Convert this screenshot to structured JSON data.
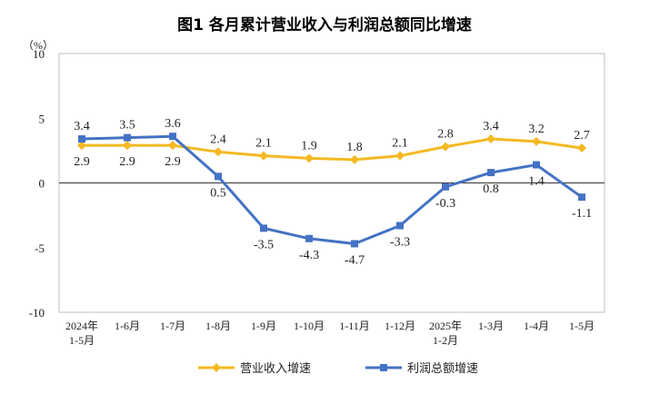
{
  "chart_data": {
    "type": "line",
    "title": "图1  各月累计营业收入与利润总额同比增速",
    "ylabel": "（%）",
    "xlabel": "",
    "ylim": [
      -10,
      10
    ],
    "yticks": [
      10,
      5,
      0,
      -5,
      -10
    ],
    "categories": [
      [
        "2024年",
        "1-5月"
      ],
      [
        "1-6月"
      ],
      [
        "1-7月"
      ],
      [
        "1-8月"
      ],
      [
        "1-9月"
      ],
      [
        "1-10月"
      ],
      [
        "1-11月"
      ],
      [
        "1-12月"
      ],
      [
        "2025年",
        "1-2月"
      ],
      [
        "1-3月"
      ],
      [
        "1-4月"
      ],
      [
        "1-5月"
      ]
    ],
    "series": [
      {
        "name": "营业收入增速",
        "color": "#F5B921",
        "marker": "diamond",
        "values": [
          2.9,
          2.9,
          2.9,
          2.4,
          2.1,
          1.9,
          1.8,
          2.1,
          2.8,
          3.4,
          3.2,
          2.7
        ],
        "labels": [
          "2.9",
          "2.9",
          "2.9",
          "2.4",
          "2.1",
          "1.9",
          "1.8",
          "2.1",
          "2.8",
          "3.4",
          "3.2",
          "2.7"
        ]
      },
      {
        "name": "利润总额增速",
        "color": "#4472C4",
        "marker": "square",
        "values": [
          3.4,
          3.5,
          3.6,
          0.5,
          -3.5,
          -4.3,
          -4.7,
          -3.3,
          -0.3,
          0.8,
          1.4,
          -1.1
        ],
        "labels": [
          "3.4",
          "3.5",
          "3.6",
          "0.5",
          "-3.5",
          "-4.3",
          "-4.7",
          "-3.3",
          "-0.3",
          "0.8",
          "1.4",
          "-1.1"
        ]
      }
    ],
    "legend_position": "bottom",
    "grid": false
  }
}
